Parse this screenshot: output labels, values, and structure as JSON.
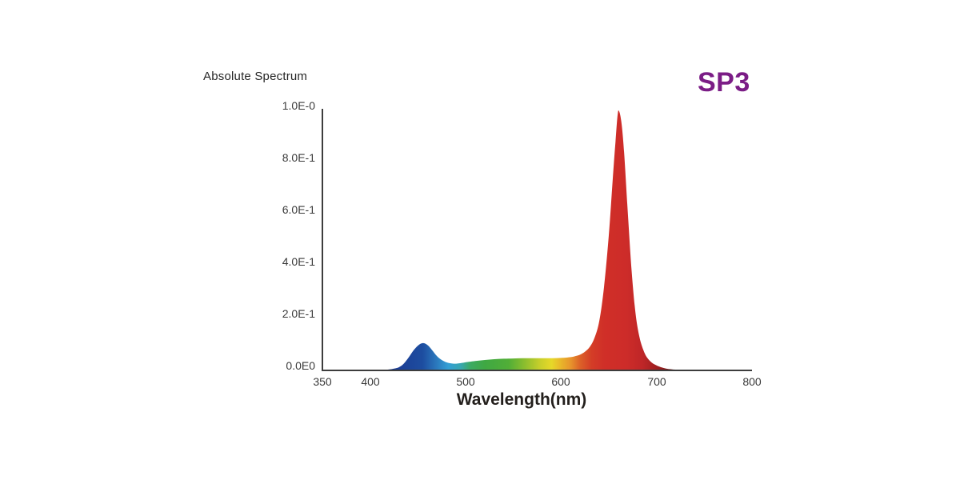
{
  "header": {
    "title": "Absolute Spectrum",
    "model_label": "SP3",
    "model_color": "#7b1d86"
  },
  "chart_data": {
    "type": "area",
    "title": "Absolute Spectrum",
    "xlabel": "Wavelength(nm)",
    "ylabel": "",
    "xlim": [
      350,
      800
    ],
    "ylim": [
      0,
      1.0
    ],
    "grid": false,
    "legend": "none",
    "axis_color": "#3d3d3d",
    "xticks": [
      {
        "value": 350,
        "label": "350"
      },
      {
        "value": 400,
        "label": "400"
      },
      {
        "value": 500,
        "label": "500"
      },
      {
        "value": 600,
        "label": "600"
      },
      {
        "value": 700,
        "label": "700"
      },
      {
        "value": 800,
        "label": "800"
      }
    ],
    "yticks": [
      {
        "value": 1.0,
        "label": "1.0E-0"
      },
      {
        "value": 0.8,
        "label": "8.0E-1"
      },
      {
        "value": 0.6,
        "label": "6.0E-1"
      },
      {
        "value": 0.4,
        "label": "4.0E-1"
      },
      {
        "value": 0.2,
        "label": "2.0E-1"
      },
      {
        "value": 0.0,
        "label": "0.0E0"
      }
    ],
    "series": [
      {
        "name": "SP3 absolute spectrum",
        "points": [
          [
            350,
            0
          ],
          [
            400,
            0
          ],
          [
            410,
            0.001
          ],
          [
            415,
            0.002
          ],
          [
            420,
            0.004
          ],
          [
            425,
            0.007
          ],
          [
            430,
            0.012
          ],
          [
            435,
            0.025
          ],
          [
            440,
            0.048
          ],
          [
            445,
            0.075
          ],
          [
            450,
            0.095
          ],
          [
            455,
            0.105
          ],
          [
            460,
            0.098
          ],
          [
            465,
            0.078
          ],
          [
            470,
            0.055
          ],
          [
            475,
            0.04
          ],
          [
            480,
            0.031
          ],
          [
            485,
            0.027
          ],
          [
            490,
            0.026
          ],
          [
            495,
            0.028
          ],
          [
            500,
            0.031
          ],
          [
            510,
            0.036
          ],
          [
            520,
            0.04
          ],
          [
            530,
            0.043
          ],
          [
            540,
            0.045
          ],
          [
            550,
            0.046
          ],
          [
            560,
            0.047
          ],
          [
            570,
            0.047
          ],
          [
            580,
            0.047
          ],
          [
            590,
            0.047
          ],
          [
            600,
            0.048
          ],
          [
            610,
            0.051
          ],
          [
            615,
            0.055
          ],
          [
            620,
            0.061
          ],
          [
            625,
            0.072
          ],
          [
            630,
            0.09
          ],
          [
            635,
            0.125
          ],
          [
            640,
            0.19
          ],
          [
            645,
            0.32
          ],
          [
            650,
            0.52
          ],
          [
            654,
            0.73
          ],
          [
            657,
            0.88
          ],
          [
            660,
            1.0
          ],
          [
            663,
            0.96
          ],
          [
            666,
            0.84
          ],
          [
            670,
            0.6
          ],
          [
            674,
            0.38
          ],
          [
            678,
            0.22
          ],
          [
            682,
            0.13
          ],
          [
            686,
            0.08
          ],
          [
            690,
            0.05
          ],
          [
            695,
            0.03
          ],
          [
            700,
            0.019
          ],
          [
            705,
            0.012
          ],
          [
            710,
            0.007
          ],
          [
            715,
            0.0045
          ],
          [
            720,
            0.003
          ],
          [
            725,
            0.002
          ],
          [
            730,
            0.001
          ],
          [
            740,
            0.0005
          ],
          [
            750,
            0
          ],
          [
            800,
            0
          ]
        ]
      }
    ],
    "fill_gradient": [
      [
        350,
        "#27408f"
      ],
      [
        430,
        "#1c3e95"
      ],
      [
        455,
        "#1d4da0"
      ],
      [
        468,
        "#2a74ba"
      ],
      [
        482,
        "#339fd5"
      ],
      [
        495,
        "#38a7b0"
      ],
      [
        505,
        "#3caa62"
      ],
      [
        520,
        "#3fa843"
      ],
      [
        545,
        "#51ae37"
      ],
      [
        562,
        "#8cbe2e"
      ],
      [
        578,
        "#c8cf2b"
      ],
      [
        590,
        "#e6d829"
      ],
      [
        600,
        "#e9b52a"
      ],
      [
        610,
        "#e7942c"
      ],
      [
        620,
        "#dc6128"
      ],
      [
        632,
        "#d43d27"
      ],
      [
        645,
        "#d02f28"
      ],
      [
        668,
        "#cd2c29"
      ],
      [
        685,
        "#bf2628"
      ],
      [
        700,
        "#9f1f20"
      ],
      [
        715,
        "#77181a"
      ],
      [
        735,
        "#511013"
      ],
      [
        800,
        "#3f0d0e"
      ]
    ]
  }
}
